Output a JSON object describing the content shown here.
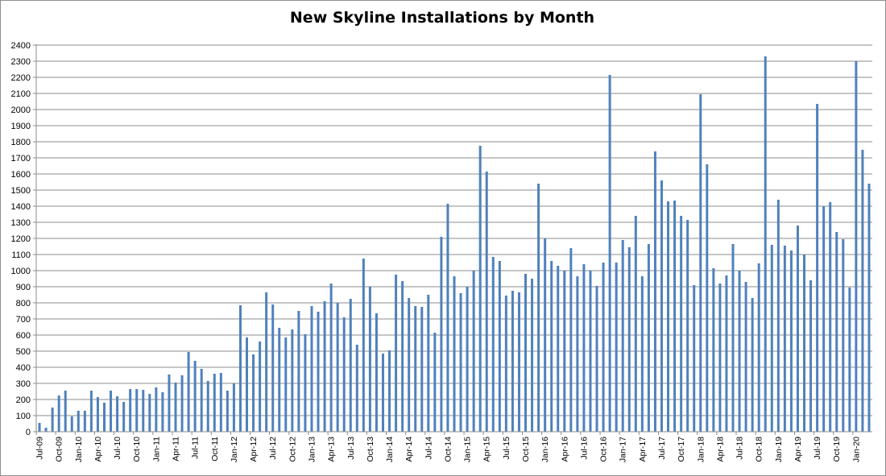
{
  "chart_data": {
    "type": "bar",
    "title": "New Skyline Installations by Month",
    "xlabel": "",
    "ylabel": "",
    "ylim": [
      0,
      2400
    ],
    "y_ticks": [
      0,
      100,
      200,
      300,
      400,
      500,
      600,
      700,
      800,
      900,
      1000,
      1100,
      1200,
      1300,
      1400,
      1500,
      1600,
      1700,
      1800,
      1900,
      2000,
      2100,
      2200,
      2300,
      2400
    ],
    "grid": true,
    "legend": "none",
    "bar_color": "#4f81bd",
    "start_month": "Jul-09",
    "categories": [
      "Jul-09",
      "Aug-09",
      "Sep-09",
      "Oct-09",
      "Nov-09",
      "Dec-09",
      "Jan-10",
      "Feb-10",
      "Mar-10",
      "Apr-10",
      "May-10",
      "Jun-10",
      "Jul-10",
      "Aug-10",
      "Sep-10",
      "Oct-10",
      "Nov-10",
      "Dec-10",
      "Jan-11",
      "Feb-11",
      "Mar-11",
      "Apr-11",
      "May-11",
      "Jun-11",
      "Jul-11",
      "Aug-11",
      "Sep-11",
      "Oct-11",
      "Nov-11",
      "Dec-11",
      "Jan-12",
      "Feb-12",
      "Mar-12",
      "Apr-12",
      "May-12",
      "Jun-12",
      "Jul-12",
      "Aug-12",
      "Sep-12",
      "Oct-12",
      "Nov-12",
      "Dec-12",
      "Jan-13",
      "Feb-13",
      "Mar-13",
      "Apr-13",
      "May-13",
      "Jun-13",
      "Jul-13",
      "Aug-13",
      "Sep-13",
      "Oct-13",
      "Nov-13",
      "Dec-13",
      "Jan-14",
      "Feb-14",
      "Mar-14",
      "Apr-14",
      "May-14",
      "Jun-14",
      "Jul-14",
      "Aug-14",
      "Sep-14",
      "Oct-14",
      "Nov-14",
      "Dec-14",
      "Jan-15",
      "Feb-15",
      "Mar-15",
      "Apr-15",
      "May-15",
      "Jun-15",
      "Jul-15",
      "Aug-15",
      "Sep-15",
      "Oct-15",
      "Nov-15",
      "Dec-15",
      "Jan-16",
      "Feb-16",
      "Mar-16",
      "Apr-16",
      "May-16",
      "Jun-16",
      "Jul-16",
      "Aug-16",
      "Sep-16",
      "Oct-16",
      "Nov-16",
      "Dec-16",
      "Jan-17",
      "Feb-17",
      "Mar-17",
      "Apr-17",
      "May-17",
      "Jun-17",
      "Jul-17",
      "Aug-17",
      "Sep-17",
      "Oct-17",
      "Nov-17",
      "Dec-17",
      "Jan-18",
      "Feb-18",
      "Mar-18",
      "Apr-18",
      "May-18",
      "Jun-18",
      "Jul-18",
      "Aug-18",
      "Sep-18",
      "Oct-18",
      "Nov-18",
      "Dec-18",
      "Jan-19",
      "Feb-19",
      "Mar-19",
      "Apr-19",
      "May-19",
      "Jun-19",
      "Jul-19",
      "Aug-19",
      "Sep-19",
      "Oct-19",
      "Nov-19",
      "Dec-19",
      "Jan-20",
      "Feb-20",
      "Mar-20"
    ],
    "x_tick_labels": [
      "Jul-09",
      "Oct-09",
      "Jan-10",
      "Apr-10",
      "Jul-10",
      "Oct-10",
      "Jan-11",
      "Apr-11",
      "Jul-11",
      "Oct-11",
      "Jan-12",
      "Apr-12",
      "Jul-12",
      "Oct-12",
      "Jan-13",
      "Apr-13",
      "Jul-13",
      "Oct-13",
      "Jan-14",
      "Apr-14",
      "Jul-14",
      "Oct-14",
      "Jan-15",
      "Apr-15",
      "Jul-15",
      "Oct-15",
      "Jan-16",
      "Apr-16",
      "Jul-16",
      "Oct-16",
      "Jan-17",
      "Apr-17",
      "Jul-17",
      "Oct-17",
      "Jan-18",
      "Apr-18",
      "Jul-18",
      "Oct-18",
      "Jan-19",
      "Apr-19",
      "Jul-19",
      "Oct-19",
      "Jan-20"
    ],
    "values": [
      55,
      25,
      150,
      225,
      255,
      95,
      130,
      130,
      255,
      215,
      180,
      255,
      220,
      185,
      265,
      265,
      260,
      235,
      275,
      245,
      355,
      305,
      350,
      495,
      440,
      390,
      315,
      360,
      365,
      255,
      300,
      785,
      585,
      480,
      560,
      865,
      790,
      645,
      585,
      635,
      750,
      605,
      780,
      745,
      810,
      920,
      800,
      710,
      825,
      540,
      1075,
      900,
      735,
      485,
      505,
      975,
      935,
      830,
      780,
      775,
      850,
      615,
      1210,
      1415,
      965,
      860,
      900,
      1000,
      1775,
      1615,
      1085,
      1060,
      845,
      875,
      865,
      980,
      950,
      1540,
      1200,
      1060,
      1030,
      1000,
      1140,
      965,
      1040,
      1000,
      905,
      1050,
      2215,
      1050,
      1190,
      1145,
      1340,
      965,
      1165,
      1740,
      1560,
      1430,
      1435,
      1340,
      1315,
      910,
      2095,
      1660,
      1015,
      920,
      970,
      1165,
      1000,
      930,
      830,
      1045,
      2330,
      1160,
      1440,
      1155,
      1125,
      1280,
      1100,
      940,
      2035,
      1400,
      1425,
      1240,
      1195,
      895,
      2300,
      1750,
      1540
    ]
  }
}
